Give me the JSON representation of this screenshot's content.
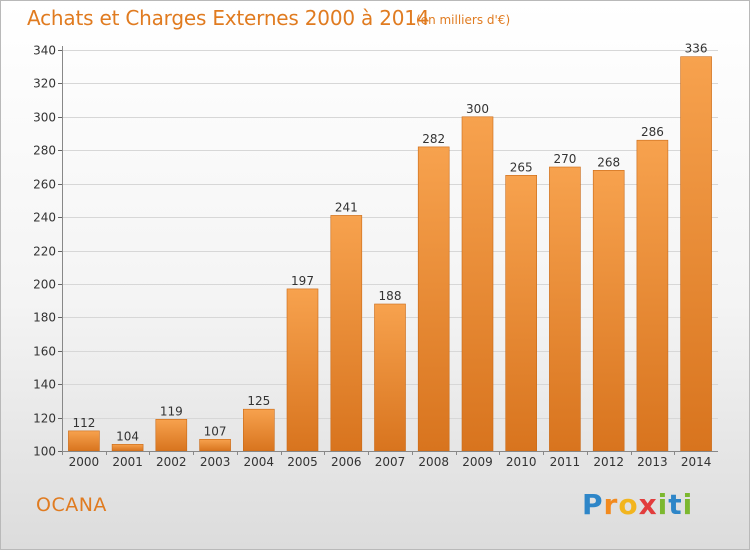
{
  "header": {
    "title": "Achats et Charges Externes 2000 à 2014",
    "subtitle": "(en milliers d'€)"
  },
  "footer": {
    "place": "OCANA",
    "logo_letters": [
      {
        "ch": "P",
        "color": "#2e86c8"
      },
      {
        "ch": "r",
        "color": "#f28a1e"
      },
      {
        "ch": "o",
        "color": "#f2b51e"
      },
      {
        "ch": "x",
        "color": "#e23d3d"
      },
      {
        "ch": "i",
        "color": "#7cb82f"
      },
      {
        "ch": "t",
        "color": "#2e86c8"
      },
      {
        "ch": "i",
        "color": "#7cb82f"
      }
    ]
  },
  "chart_data": {
    "type": "bar",
    "categories": [
      "2000",
      "2001",
      "2002",
      "2003",
      "2004",
      "2005",
      "2006",
      "2007",
      "2008",
      "2009",
      "2010",
      "2011",
      "2012",
      "2013",
      "2014"
    ],
    "values": [
      112,
      104,
      119,
      107,
      125,
      197,
      241,
      188,
      282,
      300,
      265,
      270,
      268,
      286,
      336
    ],
    "ylim": [
      100,
      340
    ],
    "yticks": [
      100,
      120,
      140,
      160,
      180,
      200,
      220,
      240,
      260,
      280,
      300,
      320,
      340
    ],
    "grid": true,
    "bar_color_top": "#f7a24e",
    "bar_color_bottom": "#d8741e"
  }
}
